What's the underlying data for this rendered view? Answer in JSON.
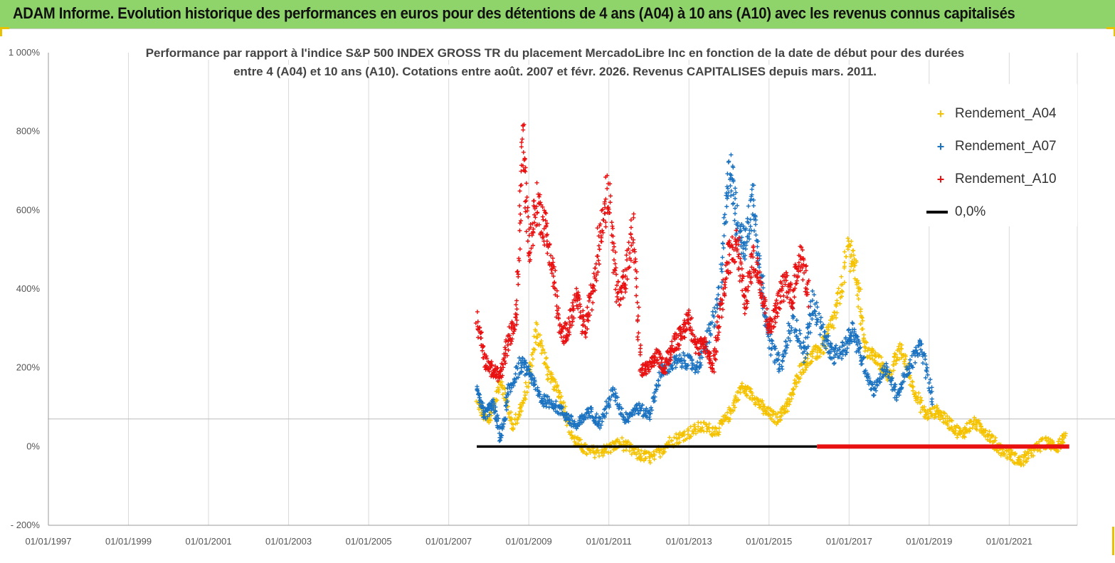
{
  "header": {
    "title": "ADAM Informe. Evolution historique des performances en euros pour des détentions de 4 ans (A04) à 10 ans (A10) avec les revenus connus capitalisés"
  },
  "colors": {
    "a04": "#f5c200",
    "a07": "#1a72c0",
    "a10": "#e81010",
    "zero": "#000000",
    "banner": "#8fd46a"
  },
  "chart_data": {
    "type": "scatter",
    "title_line1": "Performance par rapport à l'indice S&P 500 INDEX GROSS TR  du placement MercadoLibre Inc en fonction de la date de début pour des durées",
    "title_line2": "entre 4 (A04) et 10 ans (A10). Cotations entre août. 2007 et févr. 2026. Revenus CAPITALISES depuis mars. 2011.",
    "x_tick_labels": [
      "01/01/1997",
      "01/01/1999",
      "01/01/2001",
      "01/01/2003",
      "01/01/2005",
      "01/01/2007",
      "01/01/2009",
      "01/01/2011",
      "01/01/2013",
      "01/01/2015",
      "01/01/2017",
      "01/01/2019",
      "01/01/2021"
    ],
    "x_tick_years": [
      1997,
      1999,
      2001,
      2003,
      2005,
      2007,
      2009,
      2011,
      2013,
      2015,
      2017,
      2019,
      2021
    ],
    "xlim": [
      1997,
      2022.7
    ],
    "y_tick_labels": [
      "1 000%",
      "800%",
      "600%",
      "400%",
      "200%",
      "0%",
      "- 200%"
    ],
    "y_tick_values": [
      1000,
      800,
      600,
      400,
      200,
      0,
      -200
    ],
    "ylim": [
      -200,
      1000
    ],
    "series": [
      {
        "name": "Rendement_A04",
        "color_key": "a04",
        "x": [
          2007.7,
          2008.0,
          2008.3,
          2008.6,
          2008.9,
          2009.2,
          2009.5,
          2009.8,
          2010.1,
          2010.5,
          2010.9,
          2011.3,
          2011.7,
          2012.1,
          2012.5,
          2012.9,
          2013.3,
          2013.7,
          2014.0,
          2014.3,
          2014.6,
          2014.9,
          2015.2,
          2015.5,
          2015.8,
          2016.1,
          2016.4,
          2016.7,
          2017.0,
          2017.2,
          2017.4,
          2017.7,
          2018.0,
          2018.3,
          2018.6,
          2018.9,
          2019.2,
          2019.5,
          2019.8,
          2020.1,
          2020.4,
          2020.7,
          2021.0,
          2021.3,
          2021.6,
          2021.9,
          2022.2,
          2022.4
        ],
        "y": [
          110,
          60,
          170,
          50,
          120,
          300,
          180,
          130,
          20,
          -15,
          -10,
          10,
          -20,
          -30,
          10,
          30,
          50,
          40,
          80,
          150,
          130,
          90,
          70,
          110,
          200,
          230,
          260,
          350,
          510,
          430,
          250,
          220,
          180,
          250,
          150,
          80,
          90,
          60,
          30,
          60,
          40,
          0,
          -20,
          -40,
          -10,
          10,
          0,
          20
        ]
      },
      {
        "name": "Rendement_A07",
        "color_key": "a07",
        "x": [
          2007.7,
          2007.9,
          2008.1,
          2008.3,
          2008.5,
          2008.8,
          2009.0,
          2009.3,
          2009.6,
          2009.9,
          2010.2,
          2010.5,
          2010.8,
          2011.1,
          2011.4,
          2011.7,
          2012.0,
          2012.3,
          2012.6,
          2012.9,
          2013.2,
          2013.5,
          2013.8,
          2014.0,
          2014.2,
          2014.4,
          2014.6,
          2014.8,
          2015.0,
          2015.3,
          2015.6,
          2015.9,
          2016.1,
          2016.4,
          2016.6,
          2016.9,
          2017.1,
          2017.3,
          2017.6,
          2017.9,
          2018.2,
          2018.5,
          2018.8,
          2019.1
        ],
        "y": [
          140,
          80,
          110,
          20,
          140,
          210,
          190,
          120,
          110,
          80,
          50,
          90,
          60,
          140,
          70,
          100,
          80,
          190,
          210,
          220,
          200,
          280,
          400,
          720,
          580,
          500,
          640,
          430,
          270,
          200,
          330,
          230,
          370,
          270,
          230,
          250,
          300,
          230,
          140,
          200,
          130,
          200,
          260,
          110
        ]
      },
      {
        "name": "Rendement_A10",
        "color_key": "a10",
        "x": [
          2007.7,
          2007.9,
          2008.1,
          2008.3,
          2008.5,
          2008.7,
          2008.85,
          2009.0,
          2009.2,
          2009.4,
          2009.6,
          2009.8,
          2010.0,
          2010.2,
          2010.4,
          2010.6,
          2010.8,
          2011.0,
          2011.2,
          2011.4,
          2011.6,
          2011.8,
          2012.0,
          2012.2,
          2012.4,
          2012.6,
          2012.8,
          2013.0,
          2013.2,
          2013.4,
          2013.6,
          2013.8,
          2014.0,
          2014.2,
          2014.4,
          2014.6,
          2014.8,
          2015.0,
          2015.2,
          2015.4,
          2015.6,
          2015.8,
          2016.0
        ],
        "y": [
          330,
          220,
          190,
          180,
          280,
          320,
          800,
          500,
          620,
          560,
          450,
          280,
          300,
          380,
          290,
          400,
          560,
          660,
          380,
          420,
          550,
          190,
          200,
          230,
          200,
          260,
          280,
          330,
          250,
          260,
          200,
          350,
          480,
          520,
          360,
          480,
          420,
          300,
          350,
          420,
          380,
          500,
          380
        ]
      }
    ],
    "zero_line": {
      "label": "0,0%",
      "x_start": 2007.7,
      "x_end": 2016.2
    },
    "zero_line_red": {
      "x_start": 2016.2,
      "x_end": 2022.5
    },
    "legend_position": "top-right"
  }
}
